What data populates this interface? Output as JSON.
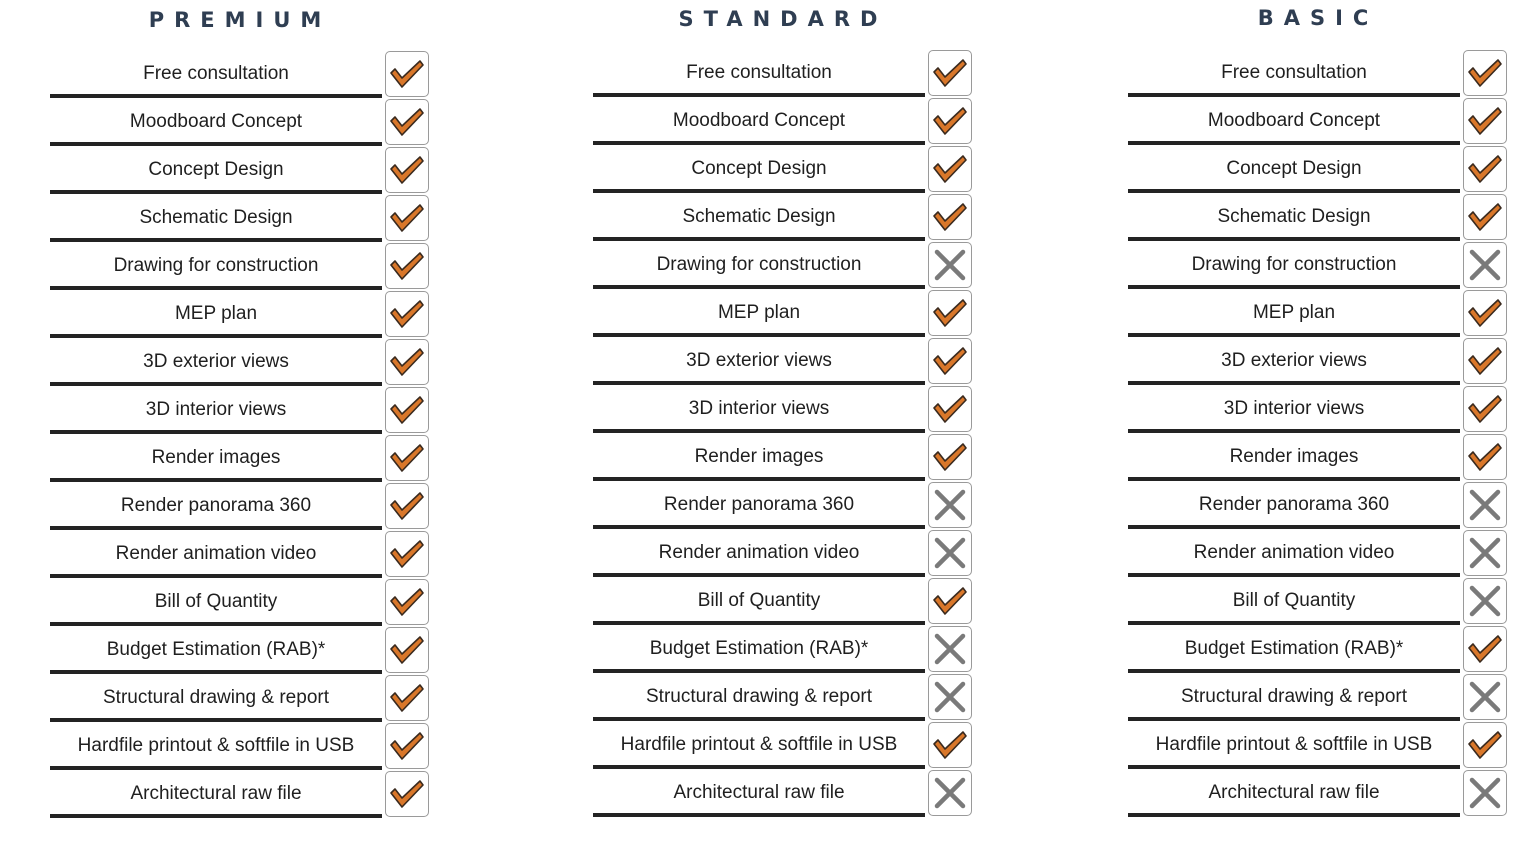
{
  "plans": [
    {
      "title": "PREMIUM",
      "features": [
        {
          "label": "Free consultation",
          "status": "check"
        },
        {
          "label": "Moodboard Concept",
          "status": "check"
        },
        {
          "label": "Concept Design",
          "status": "check"
        },
        {
          "label": "Schematic Design",
          "status": "check"
        },
        {
          "label": "Drawing for construction",
          "status": "check"
        },
        {
          "label": "MEP plan",
          "status": "check"
        },
        {
          "label": "3D exterior views",
          "status": "check"
        },
        {
          "label": "3D interior views",
          "status": "check"
        },
        {
          "label": "Render images",
          "status": "check"
        },
        {
          "label": "Render panorama 360",
          "status": "check"
        },
        {
          "label": "Render animation video",
          "status": "check"
        },
        {
          "label": "Bill of Quantity",
          "status": "check"
        },
        {
          "label": "Budget Estimation (RAB)*",
          "status": "check"
        },
        {
          "label": "Structural drawing & report",
          "status": "check"
        },
        {
          "label": "Hardfile printout & softfile in USB",
          "status": "check"
        },
        {
          "label": "Architectural raw file",
          "status": "check"
        }
      ]
    },
    {
      "title": "STANDARD",
      "features": [
        {
          "label": "Free consultation",
          "status": "check"
        },
        {
          "label": "Moodboard Concept",
          "status": "check"
        },
        {
          "label": "Concept Design",
          "status": "check"
        },
        {
          "label": "Schematic Design",
          "status": "check"
        },
        {
          "label": "Drawing for construction",
          "status": "cross"
        },
        {
          "label": "MEP plan",
          "status": "check"
        },
        {
          "label": "3D exterior views",
          "status": "check"
        },
        {
          "label": "3D interior views",
          "status": "check"
        },
        {
          "label": "Render images",
          "status": "check"
        },
        {
          "label": "Render panorama 360",
          "status": "cross"
        },
        {
          "label": "Render animation video",
          "status": "cross"
        },
        {
          "label": "Bill of Quantity",
          "status": "check"
        },
        {
          "label": "Budget Estimation (RAB)*",
          "status": "cross"
        },
        {
          "label": "Structural drawing & report",
          "status": "cross"
        },
        {
          "label": "Hardfile printout & softfile in USB",
          "status": "check"
        },
        {
          "label": "Architectural raw file",
          "status": "cross"
        }
      ]
    },
    {
      "title": "BASIC",
      "features": [
        {
          "label": "Free consultation",
          "status": "check"
        },
        {
          "label": "Moodboard Concept",
          "status": "check"
        },
        {
          "label": "Concept Design",
          "status": "check"
        },
        {
          "label": "Schematic Design",
          "status": "check"
        },
        {
          "label": "Drawing for construction",
          "status": "cross"
        },
        {
          "label": "MEP plan",
          "status": "check"
        },
        {
          "label": "3D exterior views",
          "status": "check"
        },
        {
          "label": "3D interior views",
          "status": "check"
        },
        {
          "label": "Render images",
          "status": "check"
        },
        {
          "label": "Render panorama 360",
          "status": "cross"
        },
        {
          "label": "Render animation video",
          "status": "cross"
        },
        {
          "label": "Bill of Quantity",
          "status": "cross"
        },
        {
          "label": "Budget Estimation (RAB)*",
          "status": "check"
        },
        {
          "label": "Structural drawing & report",
          "status": "cross"
        },
        {
          "label": "Hardfile printout & softfile in USB",
          "status": "check"
        },
        {
          "label": "Architectural raw file",
          "status": "cross"
        }
      ]
    }
  ],
  "icons": {
    "check": "check-icon",
    "cross": "cross-icon"
  },
  "colors": {
    "title": "#2f3e52",
    "check_fill": "#d9772a",
    "check_outline": "#3a2a1e",
    "cross": "#7a7a7a",
    "row_rule": "#232323"
  }
}
